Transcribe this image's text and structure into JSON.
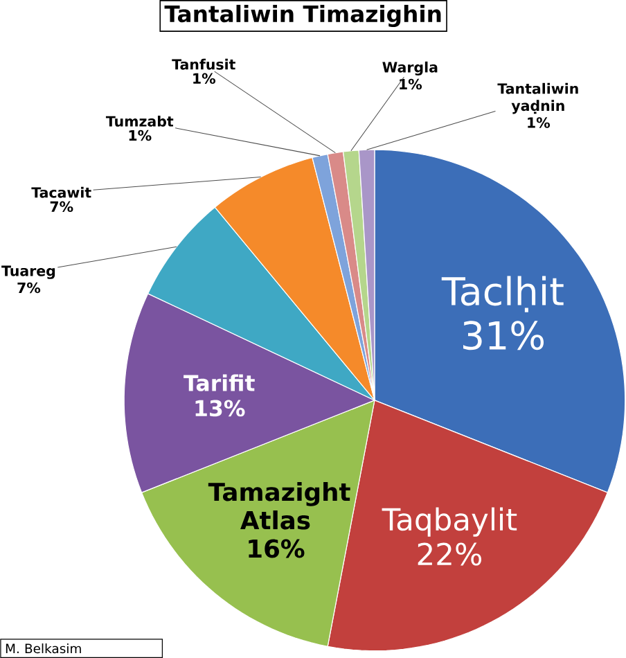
{
  "chart_data": {
    "type": "pie",
    "title": "Tantaliwin Timazighin",
    "categories": [
      "Taclḥit",
      "Taqbaylit",
      "Tamazight Atlas",
      "Tarifit",
      "Tuareg",
      "Tacawit",
      "Tumzabt",
      "Tanfusit",
      "Wargla",
      "Tantaliwin yaḍnin"
    ],
    "values": [
      31,
      22,
      16,
      13,
      7,
      7,
      1,
      1,
      1,
      1
    ],
    "value_labels": [
      "31%",
      "22%",
      "16%",
      "13%",
      "7%",
      "7%",
      "1%",
      "1%",
      "1%",
      "1%"
    ],
    "colors": [
      "#3c6eb8",
      "#c2403d",
      "#97c04f",
      "#7a54a0",
      "#3fa8c4",
      "#f58a2a",
      "#7ea3db",
      "#d98a88",
      "#b5d68c",
      "#a996c8"
    ],
    "annotations": [
      "M. Belkasim"
    ]
  }
}
